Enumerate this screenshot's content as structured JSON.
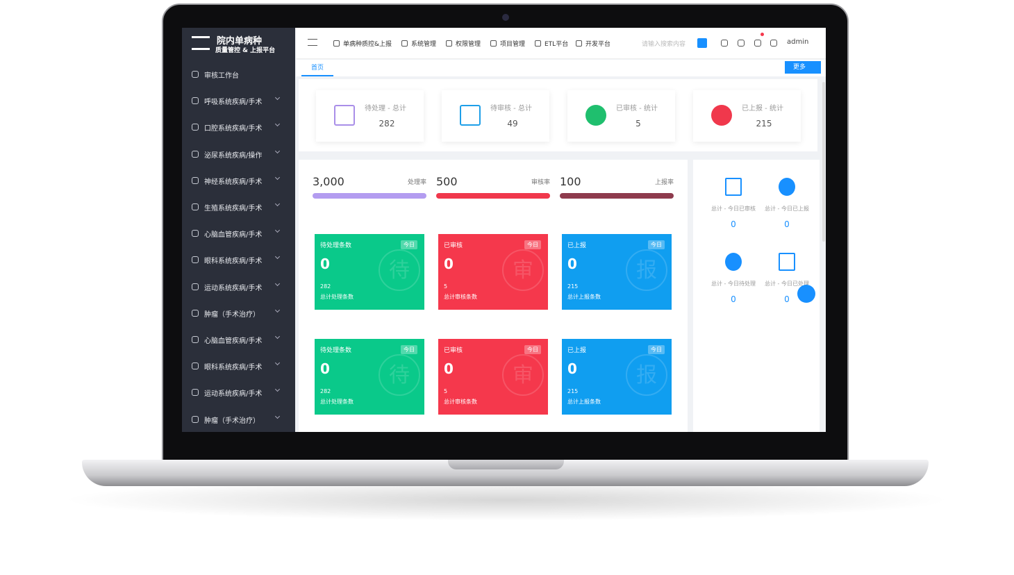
{
  "logo": {
    "title": "院内单病种",
    "subtitle": "质量管控 & 上报平台"
  },
  "sidebar": [
    "审核工作台",
    "呼吸系统疾病/手术",
    "口腔系统疾病/手术",
    "泌尿系统疾病/操作",
    "神经系统疾病/手术",
    "生殖系统疾病/手术",
    "心脑血管疾病/手术",
    "眼科系统疾病/手术",
    "运动系统疾病/手术",
    "肿瘤（手术治疗）",
    "心脑血管疾病/手术",
    "眼科系统疾病/手术",
    "运动系统疾病/手术",
    "肿瘤（手术治疗）"
  ],
  "nav": [
    "单病种质控&上报",
    "系统管理",
    "权限管理",
    "项目管理",
    "ETL平台",
    "开发平台"
  ],
  "search_placeholder": "请输入搜索内容",
  "user": "admin",
  "tab": "首页",
  "more_button": "更多",
  "stats": [
    {
      "label": "待处理 - 总计",
      "value": 282,
      "color": "#a98ee8"
    },
    {
      "label": "待审核 - 总计",
      "value": 49,
      "color": "#1e9fe8"
    },
    {
      "label": "已审核 - 统计",
      "value": 5,
      "color": "#1fbf6e"
    },
    {
      "label": "已上报 - 统计",
      "value": 215,
      "color": "#f0384c"
    }
  ],
  "metrics": [
    {
      "value": "3,000",
      "label": "处理率",
      "color": "#b39cf0"
    },
    {
      "value": "500",
      "label": "审核率",
      "color": "#f0384c"
    },
    {
      "value": "100",
      "label": "上报率",
      "color": "#8e3b4d"
    }
  ],
  "tiles": [
    {
      "title": "待处理条数",
      "badge": "今日",
      "big": "0",
      "count": "282",
      "footer": "总计处理条数",
      "mark": "待",
      "color": "#0ac98a"
    },
    {
      "title": "已审核",
      "badge": "今日",
      "big": "0",
      "count": "5",
      "footer": "总计审核条数",
      "mark": "审",
      "color": "#f5384c"
    },
    {
      "title": "已上报",
      "badge": "今日",
      "big": "0",
      "count": "215",
      "footer": "总计上报条数",
      "mark": "报",
      "color": "#109ef0"
    },
    {
      "title": "待处理条数",
      "badge": "今日",
      "big": "0",
      "count": "282",
      "footer": "总计处理条数",
      "mark": "待",
      "color": "#0ac98a"
    },
    {
      "title": "已审核",
      "badge": "今日",
      "big": "0",
      "count": "5",
      "footer": "总计审核条数",
      "mark": "审",
      "color": "#f5384c"
    },
    {
      "title": "已上报",
      "badge": "今日",
      "big": "0",
      "count": "215",
      "footer": "总计上报条数",
      "mark": "报",
      "color": "#109ef0"
    }
  ],
  "today": [
    {
      "label": "总计 - 今日已审核",
      "value": 0
    },
    {
      "label": "总计 - 今日已上报",
      "value": 0
    },
    {
      "label": "总计 - 今日待处理",
      "value": 0
    },
    {
      "label": "总计 - 今日已处理",
      "value": 0
    }
  ]
}
